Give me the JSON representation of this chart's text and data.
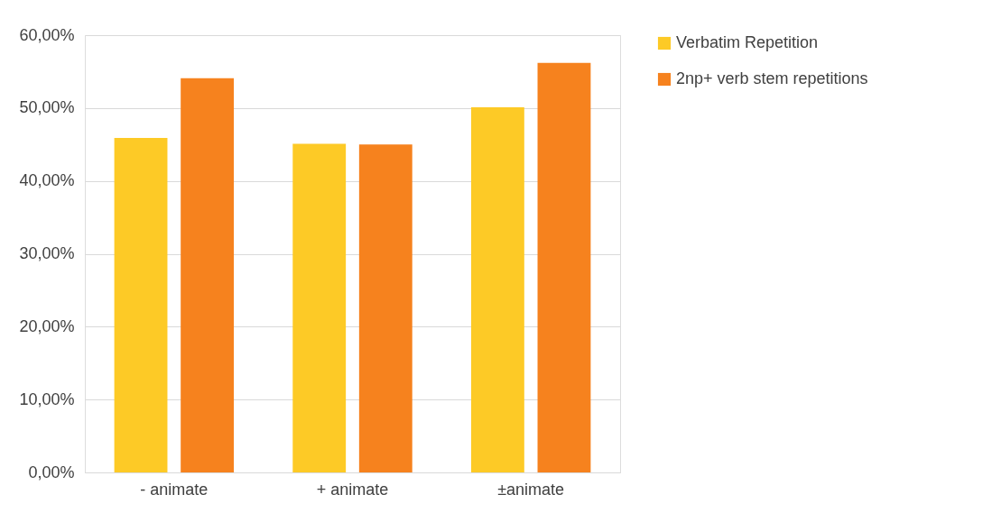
{
  "chart_data": {
    "type": "bar",
    "categories": [
      "- animate",
      "+ animate",
      "±animate"
    ],
    "series": [
      {
        "name": "Verbatim Repetition",
        "color": "#fdca26",
        "values": [
          45.9,
          45.1,
          50.1
        ]
      },
      {
        "name": "2np+ verb stem repetitions",
        "color": "#f6821e",
        "values": [
          54.1,
          45.0,
          56.2
        ]
      }
    ],
    "ylim": [
      0,
      60
    ],
    "yticks": [
      {
        "value": 0,
        "label": "0,00%"
      },
      {
        "value": 10,
        "label": "10,00%"
      },
      {
        "value": 20,
        "label": "20,00%"
      },
      {
        "value": 30,
        "label": "30,00%"
      },
      {
        "value": 40,
        "label": "40,00%"
      },
      {
        "value": 50,
        "label": "50,00%"
      },
      {
        "value": 60,
        "label": "60,00%"
      }
    ],
    "grid": "y",
    "legend": "right"
  }
}
